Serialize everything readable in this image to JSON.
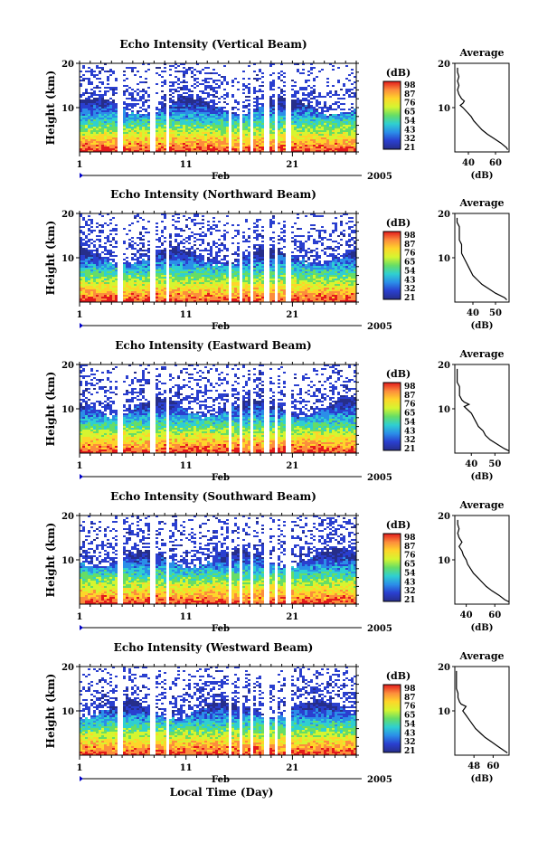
{
  "chart_data": {
    "type": "heatmap",
    "xlabel": "Local Time (Day)",
    "month_label": "Feb",
    "year_label": "2005",
    "x_ticklabels": [
      "1",
      "11",
      "21"
    ],
    "x_range_days": [
      1,
      27
    ],
    "ylabel": "Height (km)",
    "ylim": [
      0,
      20
    ],
    "y_ticklabels": [
      "20",
      "10"
    ],
    "colorbar": {
      "title": "(dB)",
      "ticks": [
        "98",
        "87",
        "76",
        "65",
        "54",
        "43",
        "32",
        "21"
      ],
      "colors": [
        "#e31a1c",
        "#fc8d3c",
        "#fed52a",
        "#d6f530",
        "#66dd66",
        "#2fcfd1",
        "#2b8ee8",
        "#2a3fcf",
        "#262e8a"
      ]
    },
    "missing_data_gaps_days": [
      [
        4.4,
        5.0
      ],
      [
        7.5,
        7.9
      ],
      [
        9.0,
        9.3
      ],
      [
        14.8,
        15.1
      ],
      [
        15.8,
        16.2
      ],
      [
        16.9,
        17.2
      ],
      [
        17.6,
        17.8
      ],
      [
        18.3,
        18.6
      ],
      [
        19.2,
        19.5
      ],
      [
        20.3,
        20.8
      ]
    ],
    "average_profile": {
      "title": "Average",
      "xlabel": "(dB)",
      "ylim": [
        0,
        20
      ]
    },
    "panels": [
      {
        "title": "Echo Intensity (Vertical Beam)",
        "avg_xticks": [
          "40",
          "60"
        ],
        "avg_xlim": [
          30,
          70
        ],
        "avg_profile_height_km": [
          0.5,
          1,
          2,
          3,
          4,
          5,
          6,
          7,
          8,
          9,
          10,
          10.5,
          11,
          11.5,
          12,
          13,
          14,
          15,
          16,
          17,
          18,
          19
        ],
        "avg_profile_db": [
          69,
          68,
          64,
          59,
          54,
          50,
          47,
          44,
          42,
          39,
          36,
          34,
          36,
          37,
          35,
          33,
          32,
          33,
          32,
          33,
          32,
          32
        ]
      },
      {
        "title": "Echo Intensity (Northward Beam)",
        "avg_xticks": [
          "40",
          "50"
        ],
        "avg_xlim": [
          32,
          56
        ],
        "avg_profile_height_km": [
          0.5,
          1,
          2,
          3,
          4,
          5,
          6,
          7,
          8,
          9,
          10,
          11,
          12,
          13,
          14,
          15,
          16,
          17,
          18,
          19
        ],
        "avg_profile_db": [
          55,
          54,
          50,
          47,
          44,
          42,
          40,
          39,
          38,
          37,
          36,
          35,
          35,
          35,
          34,
          34,
          34,
          34,
          33,
          33
        ]
      },
      {
        "title": "Echo Intensity (Eastward Beam)",
        "avg_xticks": [
          "40",
          "50"
        ],
        "avg_xlim": [
          33,
          56
        ],
        "avg_profile_height_km": [
          0.5,
          1,
          2,
          3,
          4,
          5,
          6,
          7,
          8,
          9,
          10,
          10.5,
          11,
          11.5,
          12,
          13,
          14,
          15,
          16,
          17,
          18,
          19
        ],
        "avg_profile_db": [
          56,
          54,
          51,
          48,
          46,
          45,
          43,
          42,
          41,
          40,
          38,
          37,
          39,
          37,
          36,
          35,
          35,
          35,
          34,
          34,
          34,
          34
        ]
      },
      {
        "title": "Echo Intensity (Southward Beam)",
        "avg_xticks": [
          "40",
          "60"
        ],
        "avg_xlim": [
          32,
          70
        ],
        "avg_profile_height_km": [
          0.5,
          1,
          2,
          3,
          4,
          5,
          6,
          7,
          8,
          9,
          10,
          11,
          12,
          13,
          14,
          15,
          16,
          17,
          18,
          19
        ],
        "avg_profile_db": [
          70,
          67,
          63,
          58,
          54,
          51,
          48,
          45,
          43,
          41,
          40,
          38,
          37,
          35,
          37,
          35,
          34,
          35,
          34,
          34
        ]
      },
      {
        "title": "Echo Intensity (Westward Beam)",
        "avg_xticks": [
          "48",
          "60"
        ],
        "avg_xlim": [
          36,
          70
        ],
        "avg_profile_height_km": [
          0.5,
          1,
          2,
          3,
          4,
          5,
          6,
          7,
          8,
          9,
          10,
          11,
          11.5,
          12,
          13,
          14,
          15,
          16,
          17,
          18,
          19
        ],
        "avg_profile_db": [
          69,
          67,
          63,
          59,
          55,
          52,
          49,
          47,
          45,
          43,
          41,
          43,
          40,
          39,
          38,
          38,
          37,
          37,
          37,
          37,
          37
        ]
      }
    ]
  }
}
